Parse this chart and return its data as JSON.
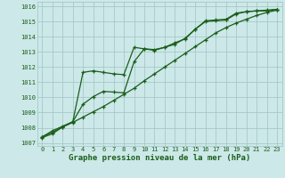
{
  "title": "Graphe pression niveau de la mer (hPa)",
  "x_values": [
    0,
    1,
    2,
    3,
    4,
    5,
    6,
    7,
    8,
    9,
    10,
    11,
    12,
    13,
    14,
    15,
    16,
    17,
    18,
    19,
    20,
    21,
    22,
    23
  ],
  "line_smooth": [
    1007.4,
    1007.7,
    1008.05,
    1008.35,
    1008.7,
    1009.05,
    1009.4,
    1009.8,
    1010.2,
    1010.6,
    1011.1,
    1011.55,
    1012.0,
    1012.45,
    1012.9,
    1013.35,
    1013.8,
    1014.25,
    1014.6,
    1014.9,
    1015.15,
    1015.4,
    1015.6,
    1015.75
  ],
  "line_high": [
    1007.4,
    1007.8,
    1008.1,
    1008.4,
    1011.65,
    1011.75,
    1011.65,
    1011.55,
    1011.5,
    1013.3,
    1013.2,
    1013.15,
    1013.3,
    1013.6,
    1013.85,
    1014.5,
    1015.05,
    1015.1,
    1015.15,
    1015.55,
    1015.65,
    1015.7,
    1015.75,
    1015.8
  ],
  "line_mid": [
    1007.35,
    1007.6,
    1008.05,
    1008.4,
    1009.55,
    1010.05,
    1010.4,
    1010.35,
    1010.3,
    1012.35,
    1013.2,
    1013.1,
    1013.3,
    1013.5,
    1013.9,
    1014.5,
    1015.0,
    1015.05,
    1015.1,
    1015.5,
    1015.65,
    1015.7,
    1015.7,
    1015.8
  ],
  "ylim": [
    1006.8,
    1016.3
  ],
  "yticks": [
    1007,
    1008,
    1009,
    1010,
    1011,
    1012,
    1013,
    1014,
    1015,
    1016
  ],
  "xlim": [
    -0.5,
    23.5
  ],
  "bg_color": "#cce8e8",
  "grid_color": "#a0c4c4",
  "line_color": "#1a5e1a",
  "marker": "+",
  "markersize": 3.5,
  "linewidth": 0.9
}
